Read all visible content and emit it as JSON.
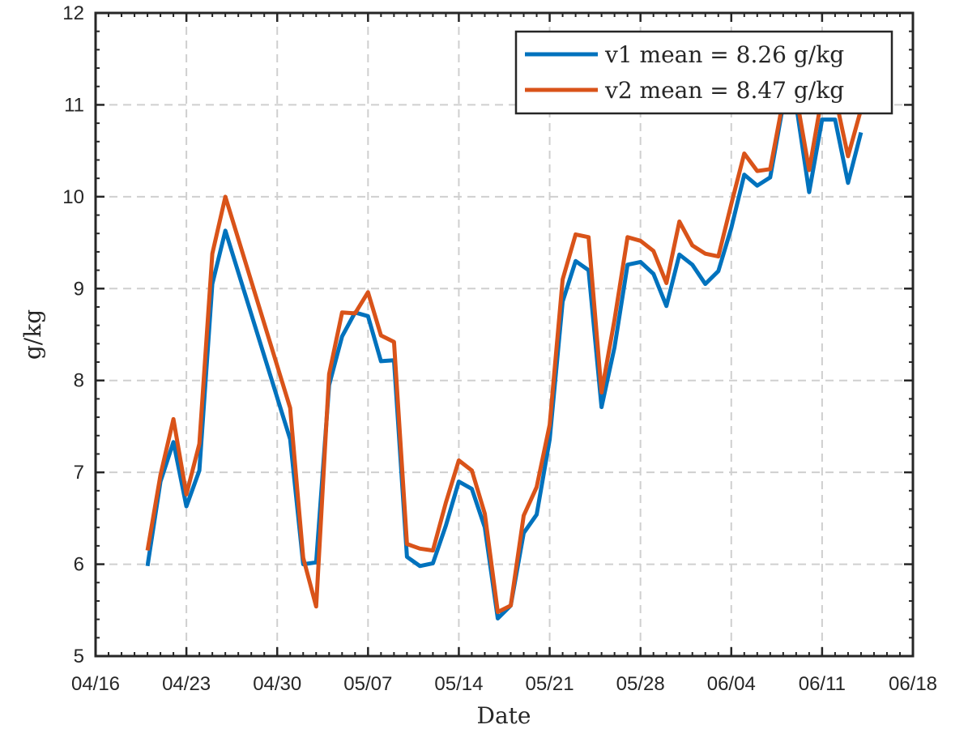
{
  "chart_data": {
    "type": "line",
    "xlabel": "Date",
    "ylabel": "g/kg",
    "ylim": [
      5,
      12
    ],
    "xlim": [
      "2023-04-16",
      "2023-06-18"
    ],
    "yticks": [
      5,
      6,
      7,
      8,
      9,
      10,
      11,
      12
    ],
    "xticks": [
      {
        "date": "2023-04-16",
        "label": "04/16"
      },
      {
        "date": "2023-04-23",
        "label": "04/23"
      },
      {
        "date": "2023-04-30",
        "label": "04/30"
      },
      {
        "date": "2023-05-07",
        "label": "05/07"
      },
      {
        "date": "2023-05-14",
        "label": "05/14"
      },
      {
        "date": "2023-05-21",
        "label": "05/21"
      },
      {
        "date": "2023-05-28",
        "label": "05/28"
      },
      {
        "date": "2023-06-04",
        "label": "06/04"
      },
      {
        "date": "2023-06-11",
        "label": "06/11"
      },
      {
        "date": "2023-06-18",
        "label": "06/18"
      }
    ],
    "grid": true,
    "legend_position": "top-right",
    "series": [
      {
        "name": "v1 mean = 8.26 g/kg",
        "color": "#0072BD",
        "points": [
          [
            "2023-04-20",
            5.98
          ],
          [
            "2023-04-21",
            6.9
          ],
          [
            "2023-04-22",
            7.33
          ],
          [
            "2023-04-23",
            6.63
          ],
          [
            "2023-04-24",
            7.02
          ],
          [
            "2023-04-25",
            9.05
          ],
          [
            "2023-04-26",
            9.63
          ],
          [
            "2023-05-01",
            7.36
          ],
          [
            "2023-05-02",
            6.0
          ],
          [
            "2023-05-03",
            6.02
          ],
          [
            "2023-05-04",
            7.95
          ],
          [
            "2023-05-05",
            8.48
          ],
          [
            "2023-05-06",
            8.74
          ],
          [
            "2023-05-07",
            8.7
          ],
          [
            "2023-05-08",
            8.21
          ],
          [
            "2023-05-09",
            8.22
          ],
          [
            "2023-05-10",
            6.08
          ],
          [
            "2023-05-11",
            5.98
          ],
          [
            "2023-05-12",
            6.01
          ],
          [
            "2023-05-13",
            6.42
          ],
          [
            "2023-05-14",
            6.9
          ],
          [
            "2023-05-15",
            6.82
          ],
          [
            "2023-05-16",
            6.4
          ],
          [
            "2023-05-17",
            5.41
          ],
          [
            "2023-05-18",
            5.55
          ],
          [
            "2023-05-19",
            6.34
          ],
          [
            "2023-05-20",
            6.54
          ],
          [
            "2023-05-21",
            7.36
          ],
          [
            "2023-05-22",
            8.86
          ],
          [
            "2023-05-23",
            9.3
          ],
          [
            "2023-05-24",
            9.2
          ],
          [
            "2023-05-25",
            7.71
          ],
          [
            "2023-05-26",
            8.36
          ],
          [
            "2023-05-27",
            9.26
          ],
          [
            "2023-05-28",
            9.29
          ],
          [
            "2023-05-29",
            9.16
          ],
          [
            "2023-05-30",
            8.81
          ],
          [
            "2023-05-31",
            9.37
          ],
          [
            "2023-06-01",
            9.26
          ],
          [
            "2023-06-02",
            9.05
          ],
          [
            "2023-06-03",
            9.19
          ],
          [
            "2023-06-04",
            9.66
          ],
          [
            "2023-06-05",
            10.24
          ],
          [
            "2023-06-06",
            10.12
          ],
          [
            "2023-06-07",
            10.21
          ],
          [
            "2023-06-08",
            11.0
          ],
          [
            "2023-06-09",
            11.0
          ],
          [
            "2023-06-10",
            10.05
          ],
          [
            "2023-06-11",
            10.84
          ],
          [
            "2023-06-12",
            10.84
          ],
          [
            "2023-06-13",
            10.15
          ],
          [
            "2023-06-14",
            10.7
          ]
        ]
      },
      {
        "name": "v2 mean = 8.47 g/kg",
        "color": "#D95319",
        "points": [
          [
            "2023-04-20",
            6.15
          ],
          [
            "2023-04-21",
            6.97
          ],
          [
            "2023-04-22",
            7.58
          ],
          [
            "2023-04-23",
            6.76
          ],
          [
            "2023-04-24",
            7.31
          ],
          [
            "2023-04-25",
            9.38
          ],
          [
            "2023-04-26",
            10.0
          ],
          [
            "2023-05-01",
            7.7
          ],
          [
            "2023-05-02",
            6.07
          ],
          [
            "2023-05-03",
            5.54
          ],
          [
            "2023-05-04",
            8.07
          ],
          [
            "2023-05-05",
            8.74
          ],
          [
            "2023-05-06",
            8.73
          ],
          [
            "2023-05-07",
            8.96
          ],
          [
            "2023-05-08",
            8.49
          ],
          [
            "2023-05-09",
            8.42
          ],
          [
            "2023-05-10",
            6.22
          ],
          [
            "2023-05-11",
            6.17
          ],
          [
            "2023-05-12",
            6.15
          ],
          [
            "2023-05-13",
            6.67
          ],
          [
            "2023-05-14",
            7.13
          ],
          [
            "2023-05-15",
            7.02
          ],
          [
            "2023-05-16",
            6.55
          ],
          [
            "2023-05-17",
            5.48
          ],
          [
            "2023-05-18",
            5.55
          ],
          [
            "2023-05-19",
            6.53
          ],
          [
            "2023-05-20",
            6.84
          ],
          [
            "2023-05-21",
            7.52
          ],
          [
            "2023-05-22",
            9.1
          ],
          [
            "2023-05-23",
            9.59
          ],
          [
            "2023-05-24",
            9.56
          ],
          [
            "2023-05-25",
            7.87
          ],
          [
            "2023-05-26",
            8.66
          ],
          [
            "2023-05-27",
            9.56
          ],
          [
            "2023-05-28",
            9.52
          ],
          [
            "2023-05-29",
            9.41
          ],
          [
            "2023-05-30",
            9.06
          ],
          [
            "2023-05-31",
            9.73
          ],
          [
            "2023-06-01",
            9.47
          ],
          [
            "2023-06-02",
            9.38
          ],
          [
            "2023-06-03",
            9.35
          ],
          [
            "2023-06-04",
            9.92
          ],
          [
            "2023-06-05",
            10.47
          ],
          [
            "2023-06-06",
            10.28
          ],
          [
            "2023-06-07",
            10.3
          ],
          [
            "2023-06-08",
            11.05
          ],
          [
            "2023-06-09",
            11.1
          ],
          [
            "2023-06-10",
            10.29
          ],
          [
            "2023-06-11",
            11.1
          ],
          [
            "2023-06-12",
            11.1
          ],
          [
            "2023-06-13",
            10.44
          ],
          [
            "2023-06-14",
            10.95
          ]
        ]
      }
    ]
  }
}
